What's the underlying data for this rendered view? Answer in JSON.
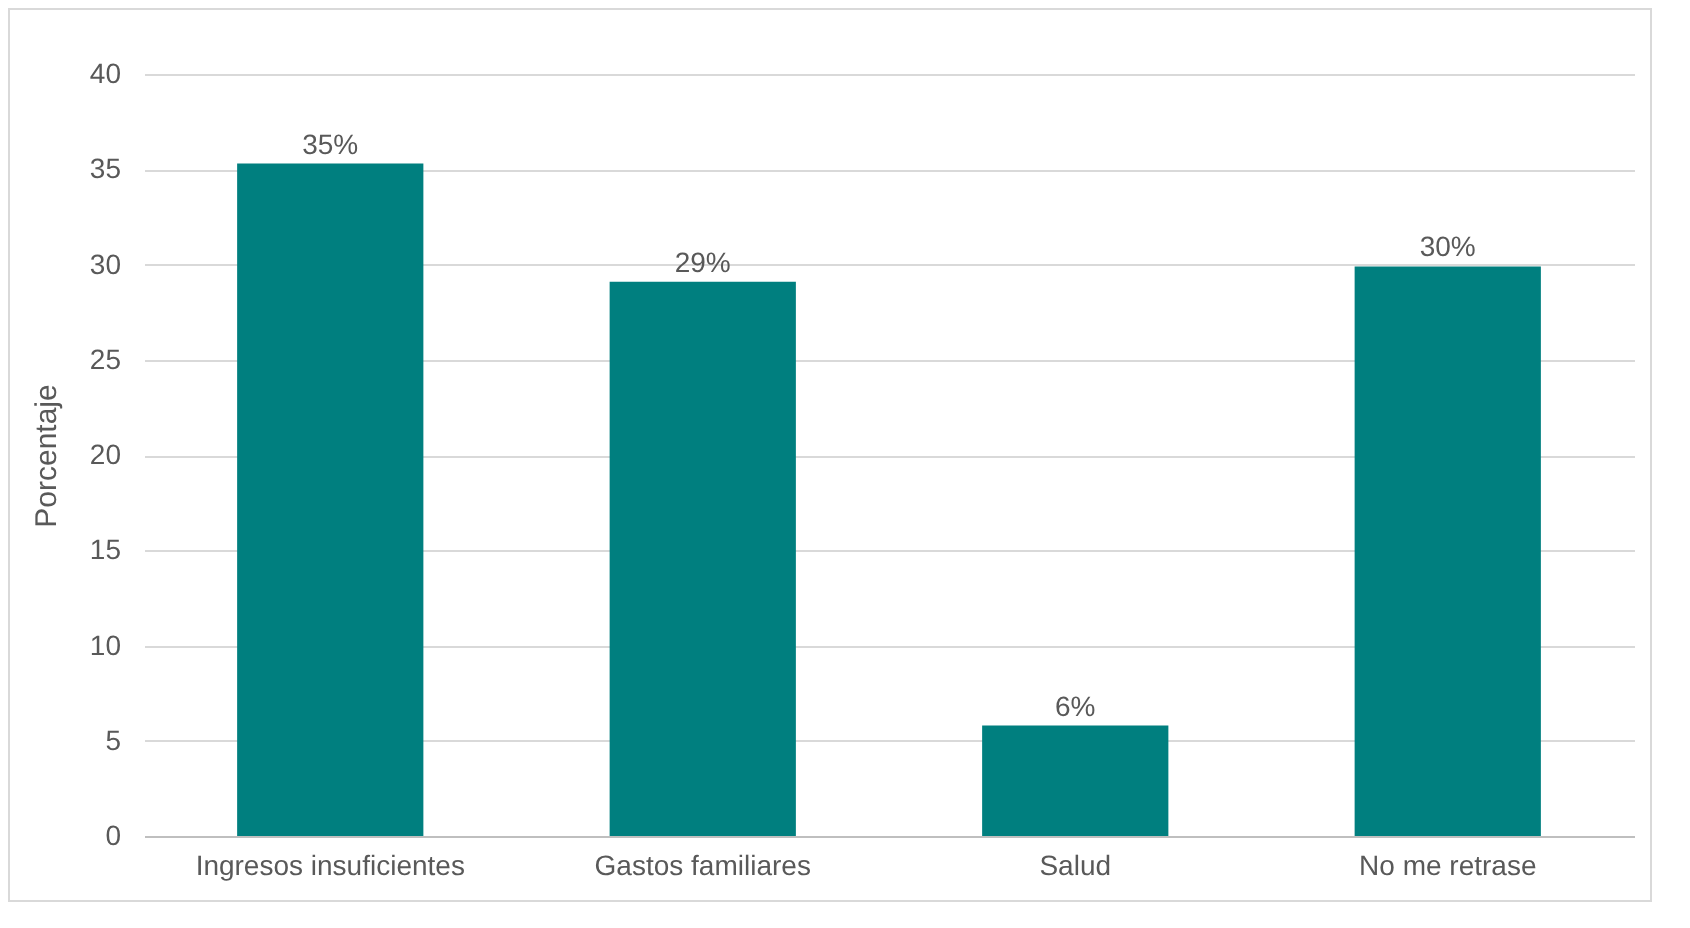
{
  "chart_data": {
    "type": "bar",
    "ylabel": "Porcentaje",
    "categories": [
      "Ingresos insuficientes",
      "Gastos familiares",
      "Salud",
      "No me retrase"
    ],
    "values": [
      35.3,
      29.1,
      5.8,
      29.9
    ],
    "value_labels": [
      "35%",
      "29%",
      "6%",
      "30%"
    ],
    "color": "#007f7f",
    "ylim": [
      0,
      40
    ],
    "yticks": [
      0,
      5,
      10,
      15,
      20,
      25,
      30,
      35,
      40
    ],
    "grid": "y"
  }
}
